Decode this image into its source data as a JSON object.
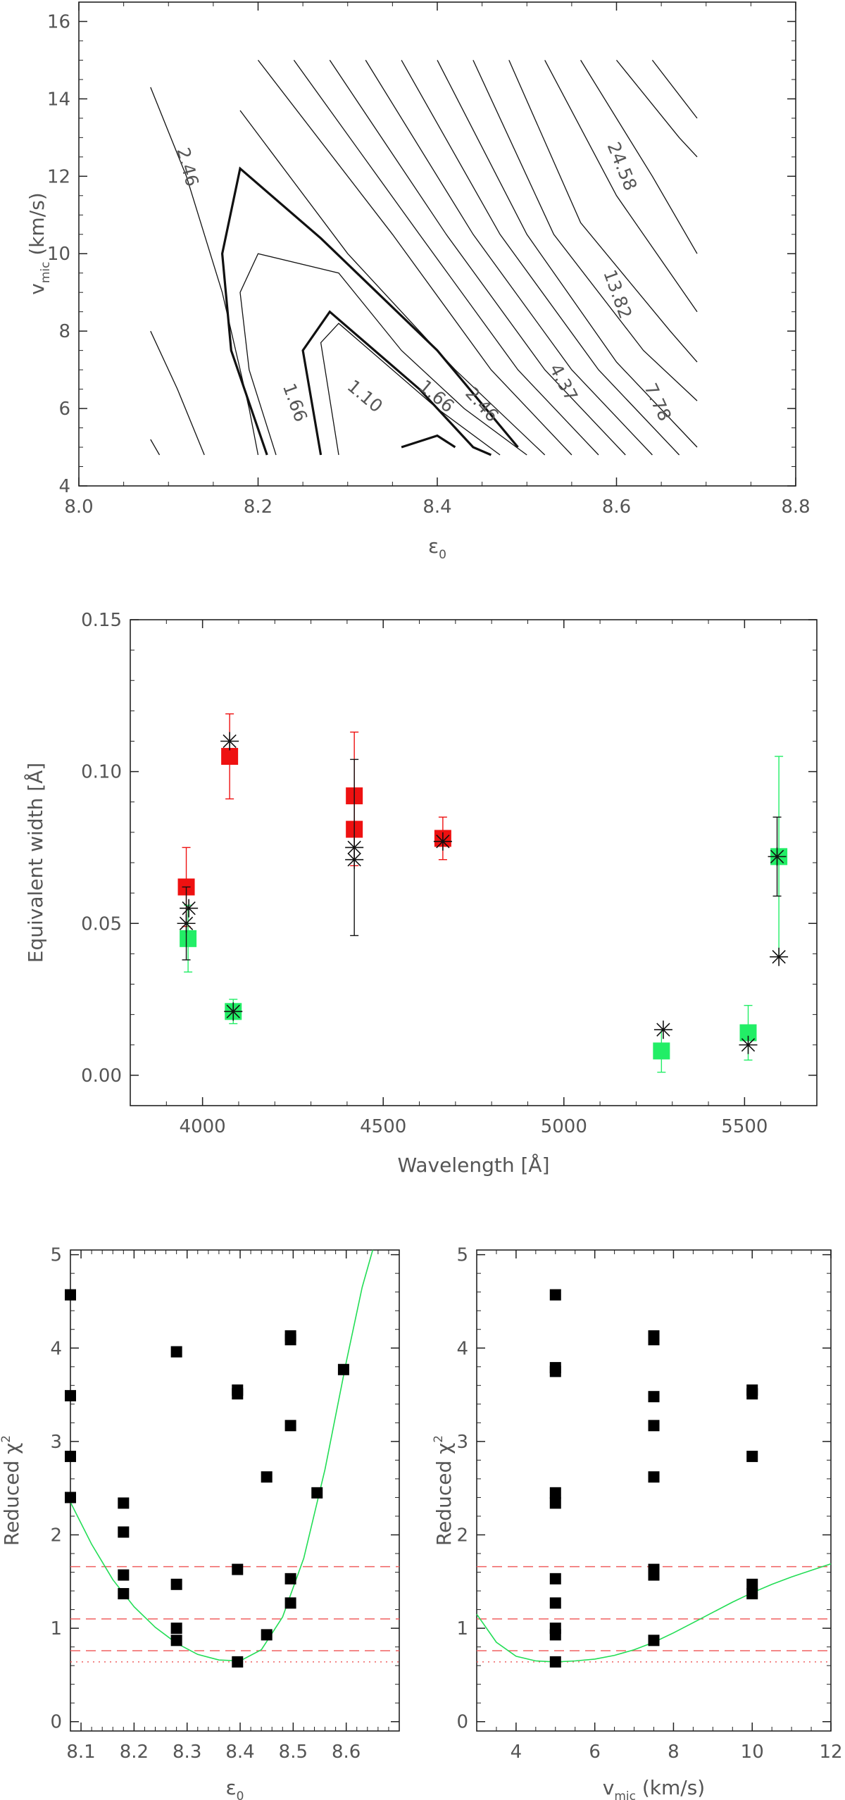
{
  "chart_data": [
    {
      "type": "contour",
      "xlabel_base": "ε",
      "xlabel_sub": "0",
      "ylabel_base": "v",
      "ylabel_sub": "mic",
      "ylabel_unit": " (km/s)",
      "xlim": [
        8.0,
        8.8
      ],
      "ylim": [
        4,
        16.5
      ],
      "xticks": [
        "8.0",
        "8.2",
        "8.4",
        "8.6",
        "8.8"
      ],
      "yticks": [
        "4",
        "6",
        "8",
        "10",
        "12",
        "14",
        "16"
      ],
      "contour_labels": [
        "2.46",
        "1.66",
        "1.10",
        "1.66",
        "2.46",
        "4.37",
        "7.78",
        "13.82",
        "24.58"
      ],
      "contours": [
        {
          "level": "1.10",
          "bold": true,
          "points": [
            [
              8.36,
              5.0
            ],
            [
              8.4,
              5.3
            ],
            [
              8.42,
              5.0
            ]
          ]
        },
        {
          "level": "1.10",
          "bold": true,
          "points": [
            [
              8.27,
              4.8
            ],
            [
              8.25,
              7.5
            ],
            [
              8.28,
              8.5
            ],
            [
              8.38,
              6.5
            ],
            [
              8.44,
              5.0
            ],
            [
              8.46,
              4.8
            ]
          ]
        },
        {
          "level": "",
          "bold": false,
          "points": [
            [
              8.29,
              4.8
            ],
            [
              8.27,
              7.7
            ],
            [
              8.29,
              8.2
            ],
            [
              8.4,
              6.0
            ],
            [
              8.47,
              4.8
            ]
          ]
        },
        {
          "level": "1.66",
          "bold": false,
          "points": [
            [
              8.22,
              4.8
            ],
            [
              8.19,
              7.0
            ],
            [
              8.18,
              9.0
            ],
            [
              8.2,
              10.0
            ],
            [
              8.29,
              9.5
            ],
            [
              8.36,
              7.5
            ],
            [
              8.43,
              6.0
            ],
            [
              8.5,
              4.8
            ]
          ]
        },
        {
          "level": "1.66",
          "bold": true,
          "points": [
            [
              8.21,
              4.8
            ],
            [
              8.17,
              7.5
            ],
            [
              8.16,
              10.0
            ],
            [
              8.18,
              12.2
            ],
            [
              8.27,
              10.4
            ],
            [
              8.4,
              7.5
            ],
            [
              8.49,
              5.0
            ]
          ]
        },
        {
          "level": "2.46",
          "bold": false,
          "points": [
            [
              8.08,
              14.3
            ],
            [
              8.12,
              12.0
            ],
            [
              8.16,
              9.0
            ],
            [
              8.19,
              6.0
            ],
            [
              8.2,
              4.8
            ]
          ]
        },
        {
          "level": "2.46",
          "bold": false,
          "points": [
            [
              8.18,
              13.7
            ],
            [
              8.3,
              10.0
            ],
            [
              8.42,
              7.0
            ],
            [
              8.52,
              4.8
            ]
          ]
        },
        {
          "level": "",
          "bold": false,
          "points": [
            [
              8.08,
              8.0
            ],
            [
              8.11,
              6.5
            ],
            [
              8.14,
              4.8
            ]
          ]
        },
        {
          "level": "",
          "bold": false,
          "points": [
            [
              8.08,
              5.2
            ],
            [
              8.09,
              4.8
            ]
          ]
        },
        {
          "level": "4.37",
          "bold": false,
          "points": [
            [
              8.2,
              15.0
            ],
            [
              8.35,
              10.5
            ],
            [
              8.46,
              7.0
            ],
            [
              8.55,
              4.8
            ]
          ]
        },
        {
          "level": "",
          "bold": false,
          "points": [
            [
              8.24,
              15.0
            ],
            [
              8.38,
              10.5
            ],
            [
              8.49,
              7.0
            ],
            [
              8.58,
              4.8
            ]
          ]
        },
        {
          "level": "7.78",
          "bold": false,
          "points": [
            [
              8.28,
              15.0
            ],
            [
              8.41,
              10.5
            ],
            [
              8.52,
              7.0
            ],
            [
              8.61,
              4.8
            ]
          ]
        },
        {
          "level": "",
          "bold": false,
          "points": [
            [
              8.32,
              15.0
            ],
            [
              8.44,
              10.5
            ],
            [
              8.55,
              7.0
            ],
            [
              8.64,
              4.8
            ]
          ]
        },
        {
          "level": "13.82",
          "bold": false,
          "points": [
            [
              8.36,
              15.0
            ],
            [
              8.47,
              10.5
            ],
            [
              8.58,
              7.0
            ],
            [
              8.67,
              4.8
            ]
          ]
        },
        {
          "level": "",
          "bold": false,
          "points": [
            [
              8.4,
              15.0
            ],
            [
              8.5,
              10.5
            ],
            [
              8.6,
              7.2
            ],
            [
              8.69,
              5.0
            ]
          ]
        },
        {
          "level": "24.58",
          "bold": false,
          "points": [
            [
              8.44,
              15.0
            ],
            [
              8.53,
              10.5
            ],
            [
              8.63,
              7.5
            ],
            [
              8.69,
              6.2
            ]
          ]
        },
        {
          "level": "",
          "bold": false,
          "points": [
            [
              8.48,
              15.0
            ],
            [
              8.56,
              10.8
            ],
            [
              8.66,
              8.0
            ],
            [
              8.69,
              7.2
            ]
          ]
        },
        {
          "level": "",
          "bold": false,
          "points": [
            [
              8.52,
              15.0
            ],
            [
              8.6,
              11.5
            ],
            [
              8.69,
              8.5
            ]
          ]
        },
        {
          "level": "",
          "bold": false,
          "points": [
            [
              8.56,
              15.0
            ],
            [
              8.64,
              12.0
            ],
            [
              8.69,
              10.0
            ]
          ]
        },
        {
          "level": "",
          "bold": false,
          "points": [
            [
              8.6,
              15.0
            ],
            [
              8.67,
              13.0
            ],
            [
              8.69,
              12.5
            ]
          ]
        },
        {
          "level": "",
          "bold": false,
          "points": [
            [
              8.64,
              15.0
            ],
            [
              8.69,
              13.5
            ]
          ]
        }
      ]
    },
    {
      "type": "scatter",
      "xlabel": "Wavelength [Å]",
      "ylabel": "Equivalent width [Å]",
      "xlim": [
        3800,
        5700
      ],
      "ylim": [
        -0.01,
        0.15
      ],
      "xticks": [
        "4000",
        "4500",
        "5000",
        "5500"
      ],
      "yticks": [
        "0.00",
        "0.05",
        "0.10",
        "0.15"
      ],
      "series": [
        {
          "marker": "square",
          "color": "#ee1111",
          "points": [
            {
              "x": 3955,
              "y": 0.062,
              "err": 0.013
            },
            {
              "x": 4075,
              "y": 0.105,
              "err": 0.014
            },
            {
              "x": 4420,
              "y": 0.092,
              "err": 0.021
            },
            {
              "x": 4420,
              "y": 0.081,
              "err": 0.012
            },
            {
              "x": 4665,
              "y": 0.078,
              "err": 0.007
            }
          ]
        },
        {
          "marker": "square",
          "color": "#22ee66",
          "points": [
            {
              "x": 3960,
              "y": 0.045,
              "err": 0.011
            },
            {
              "x": 4085,
              "y": 0.021,
              "err": 0.004
            },
            {
              "x": 5270,
              "y": 0.008,
              "err": 0.007
            },
            {
              "x": 5510,
              "y": 0.014,
              "err": 0.009
            },
            {
              "x": 5595,
              "y": 0.072,
              "err": 0.033
            }
          ]
        },
        {
          "marker": "asterisk",
          "color": "#111111",
          "points": [
            {
              "x": 3955,
              "y": 0.05,
              "err": 0.012
            },
            {
              "x": 3962,
              "y": 0.055,
              "err": 0.0
            },
            {
              "x": 4075,
              "y": 0.11,
              "err": 0.0
            },
            {
              "x": 4085,
              "y": 0.021,
              "err": 0.0
            },
            {
              "x": 4420,
              "y": 0.071,
              "err": 0.0
            },
            {
              "x": 4420,
              "y": 0.075,
              "err": 0.029
            },
            {
              "x": 4665,
              "y": 0.077,
              "err": 0.0
            },
            {
              "x": 5275,
              "y": 0.015,
              "err": 0.0
            },
            {
              "x": 5510,
              "y": 0.01,
              "err": 0.0
            },
            {
              "x": 5595,
              "y": 0.039,
              "err": 0.0
            },
            {
              "x": 5590,
              "y": 0.072,
              "err": 0.013
            }
          ]
        }
      ]
    },
    {
      "type": "scatter",
      "xlabel_base": "ε",
      "xlabel_sub": "0",
      "ylabel_base": "Reduced χ",
      "ylabel_sup": "2",
      "xlim": [
        8.08,
        8.7
      ],
      "ylim": [
        -0.1,
        5.05
      ],
      "xticks": [
        "8.1",
        "8.2",
        "8.3",
        "8.4",
        "8.5",
        "8.6"
      ],
      "yticks": [
        "0",
        "1",
        "2",
        "3",
        "4",
        "5"
      ],
      "hlines_dashed": [
        1.66,
        1.1,
        0.76
      ],
      "hline_dotted": 0.64,
      "points": [
        {
          "x": 8.08,
          "y": 4.57
        },
        {
          "x": 8.08,
          "y": 3.49
        },
        {
          "x": 8.08,
          "y": 2.84
        },
        {
          "x": 8.08,
          "y": 2.4
        },
        {
          "x": 8.18,
          "y": 2.34
        },
        {
          "x": 8.18,
          "y": 2.03
        },
        {
          "x": 8.18,
          "y": 1.57
        },
        {
          "x": 8.18,
          "y": 1.37
        },
        {
          "x": 8.28,
          "y": 3.96
        },
        {
          "x": 8.28,
          "y": 1.47
        },
        {
          "x": 8.28,
          "y": 1.0
        },
        {
          "x": 8.28,
          "y": 0.87
        },
        {
          "x": 8.395,
          "y": 3.55
        },
        {
          "x": 8.395,
          "y": 3.51
        },
        {
          "x": 8.395,
          "y": 1.63
        },
        {
          "x": 8.395,
          "y": 0.64
        },
        {
          "x": 8.45,
          "y": 2.62
        },
        {
          "x": 8.45,
          "y": 0.93
        },
        {
          "x": 8.495,
          "y": 4.13
        },
        {
          "x": 8.495,
          "y": 4.09
        },
        {
          "x": 8.495,
          "y": 3.17
        },
        {
          "x": 8.495,
          "y": 1.53
        },
        {
          "x": 8.495,
          "y": 1.27
        },
        {
          "x": 8.545,
          "y": 2.45
        },
        {
          "x": 8.595,
          "y": 3.77
        }
      ],
      "fit": [
        [
          8.08,
          2.35
        ],
        [
          8.12,
          1.9
        ],
        [
          8.16,
          1.52
        ],
        [
          8.2,
          1.23
        ],
        [
          8.24,
          1.01
        ],
        [
          8.28,
          0.84
        ],
        [
          8.32,
          0.72
        ],
        [
          8.36,
          0.66
        ],
        [
          8.4,
          0.65
        ],
        [
          8.44,
          0.77
        ],
        [
          8.48,
          1.12
        ],
        [
          8.52,
          1.75
        ],
        [
          8.56,
          2.7
        ],
        [
          8.6,
          3.85
        ],
        [
          8.63,
          4.65
        ],
        [
          8.65,
          5.05
        ]
      ]
    },
    {
      "type": "scatter",
      "xlabel_base": "v",
      "xlabel_sub": "mic",
      "xlabel_unit": " (km/s)",
      "ylabel_base": "Reduced χ",
      "ylabel_sup": "2",
      "xlim": [
        3,
        12
      ],
      "ylim": [
        -0.1,
        5.05
      ],
      "xticks": [
        "4",
        "6",
        "8",
        "10",
        "12"
      ],
      "yticks": [
        "0",
        "1",
        "2",
        "3",
        "4",
        "5"
      ],
      "hlines_dashed": [
        1.66,
        1.1,
        0.76
      ],
      "hline_dotted": 0.64,
      "points": [
        {
          "x": 5,
          "y": 4.57
        },
        {
          "x": 5,
          "y": 3.79
        },
        {
          "x": 5,
          "y": 3.75
        },
        {
          "x": 5,
          "y": 2.45
        },
        {
          "x": 5,
          "y": 2.34
        },
        {
          "x": 5,
          "y": 1.53
        },
        {
          "x": 5,
          "y": 1.27
        },
        {
          "x": 5,
          "y": 1.0
        },
        {
          "x": 5,
          "y": 0.93
        },
        {
          "x": 5,
          "y": 0.64
        },
        {
          "x": 7.5,
          "y": 4.13
        },
        {
          "x": 7.5,
          "y": 4.09
        },
        {
          "x": 7.5,
          "y": 3.48
        },
        {
          "x": 7.5,
          "y": 3.17
        },
        {
          "x": 7.5,
          "y": 2.62
        },
        {
          "x": 7.5,
          "y": 1.63
        },
        {
          "x": 7.5,
          "y": 1.57
        },
        {
          "x": 7.5,
          "y": 0.87
        },
        {
          "x": 10,
          "y": 3.55
        },
        {
          "x": 10,
          "y": 3.51
        },
        {
          "x": 10,
          "y": 2.84
        },
        {
          "x": 10,
          "y": 1.47
        },
        {
          "x": 10,
          "y": 1.37
        }
      ],
      "fit": [
        [
          3,
          1.15
        ],
        [
          3.5,
          0.85
        ],
        [
          4,
          0.7
        ],
        [
          4.5,
          0.65
        ],
        [
          5,
          0.64
        ],
        [
          5.5,
          0.65
        ],
        [
          6,
          0.67
        ],
        [
          6.5,
          0.71
        ],
        [
          7,
          0.77
        ],
        [
          7.5,
          0.85
        ],
        [
          8,
          0.95
        ],
        [
          8.5,
          1.06
        ],
        [
          9,
          1.17
        ],
        [
          9.5,
          1.28
        ],
        [
          10,
          1.38
        ],
        [
          10.5,
          1.47
        ],
        [
          11,
          1.55
        ],
        [
          11.5,
          1.62
        ],
        [
          12,
          1.69
        ]
      ]
    }
  ]
}
